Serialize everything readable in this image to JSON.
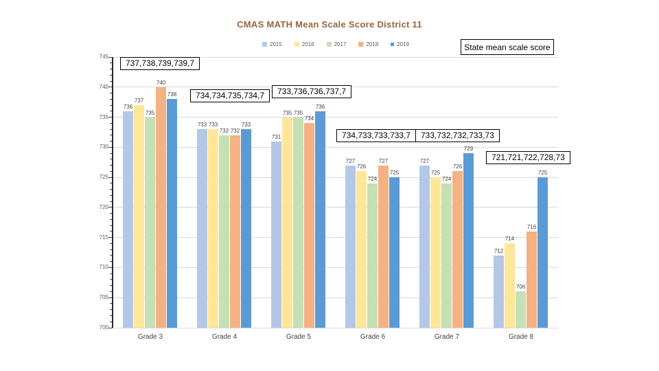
{
  "title": "CMAS MATH Mean Scale Score District 11",
  "state_box_label": "State mean scale score",
  "chart_data": {
    "type": "bar",
    "title": "CMAS MATH Mean Scale Score District 11",
    "categories": [
      "Grade 3",
      "Grade 4",
      "Grade 5",
      "Grade 6",
      "Grade 7",
      "Grade 8"
    ],
    "series": [
      {
        "name": "2015",
        "color": "#B4C7E7",
        "values": [
          736,
          733,
          731,
          727,
          727,
          712
        ]
      },
      {
        "name": "2016",
        "color": "#FFE699",
        "values": [
          737,
          733,
          735,
          726,
          725,
          714
        ]
      },
      {
        "name": "2017",
        "color": "#C5E0B4",
        "values": [
          735,
          732,
          735,
          724,
          724,
          706
        ]
      },
      {
        "name": "2018",
        "color": "#F4B183",
        "values": [
          740,
          732,
          734,
          727,
          726,
          716
        ]
      },
      {
        "name": "2019",
        "color": "#5B9BD5",
        "values": [
          738,
          733,
          736,
          725,
          729,
          725
        ]
      }
    ],
    "ylim": [
      700,
      745
    ],
    "ytick_step": 5,
    "grid": true,
    "legend_position": "top",
    "data_labels": true,
    "state_mean_callouts": [
      "737,738,739,739,7",
      "734,734,735,734,7",
      "733,736,736,737,7",
      "734,733,733,733,7",
      "733,732,732,733,73",
      "721,721,722,728,73"
    ]
  }
}
